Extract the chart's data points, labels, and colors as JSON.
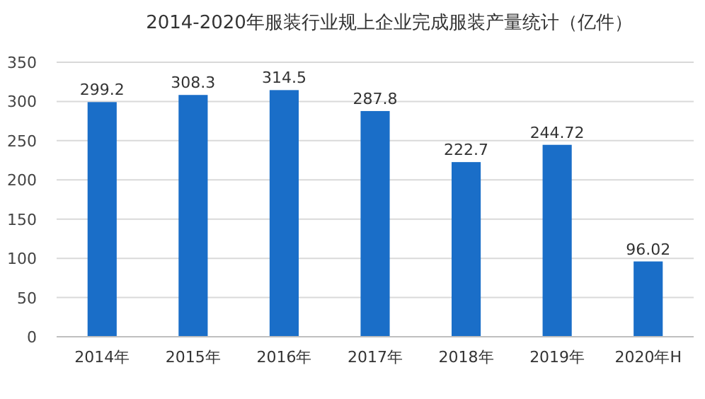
{
  "chart_data": {
    "type": "bar",
    "title": "2014-2020年服装行业规上企业完成服装产量统计（亿件）",
    "categories": [
      "2014年",
      "2015年",
      "2016年",
      "2017年",
      "2018年",
      "2019年",
      "2020年H"
    ],
    "values": [
      299.2,
      308.3,
      314.5,
      287.8,
      222.7,
      244.72,
      96.02
    ],
    "color": "#1a6ec8",
    "ylim": [
      0,
      350
    ],
    "yticks": [
      0,
      50,
      100,
      150,
      200,
      250,
      300,
      350
    ],
    "grid": "y",
    "data_labels": true
  }
}
